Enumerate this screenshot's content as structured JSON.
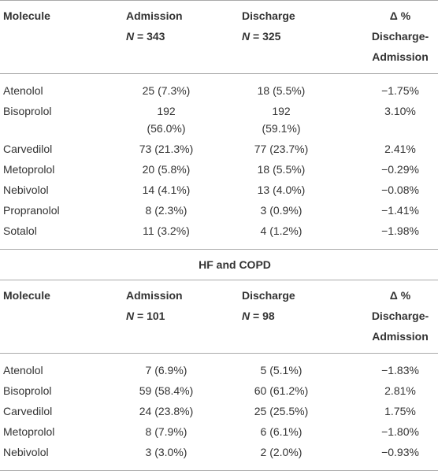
{
  "table1": {
    "header": {
      "molecule": "Molecule",
      "admission": {
        "title": "Admission",
        "n_symbol": "N",
        "n_text": "= 343"
      },
      "discharge": {
        "title": "Discharge",
        "n_symbol": "N",
        "n_text": "= 325"
      },
      "delta": [
        "Δ %",
        "Discharge-",
        "Admission"
      ]
    },
    "rows": [
      [
        "Atenolol",
        "25 (7.3%)",
        "18 (5.5%)",
        "−1.75%"
      ],
      [
        "Bisoprolol",
        [
          "192",
          "(56.0%)"
        ],
        [
          "192",
          "(59.1%)"
        ],
        "3.10%"
      ],
      [
        "Carvedilol",
        "73 (21.3%)",
        "77 (23.7%)",
        "2.41%"
      ],
      [
        "Metoprolol",
        "20 (5.8%)",
        "18 (5.5%)",
        "−0.29%"
      ],
      [
        "Nebivolol",
        "14 (4.1%)",
        "13 (4.0%)",
        "−0.08%"
      ],
      [
        "Propranolol",
        "8 (2.3%)",
        "3 (0.9%)",
        "−1.41%"
      ],
      [
        "Sotalol",
        "11 (3.2%)",
        "4 (1.2%)",
        "−1.98%"
      ]
    ]
  },
  "section_title": "HF and COPD",
  "table2": {
    "header": {
      "molecule": "Molecule",
      "admission": {
        "title": "Admission",
        "n_symbol": "N",
        "n_text": "= 101"
      },
      "discharge": {
        "title": "Discharge",
        "n_symbol": "N",
        "n_text": "= 98"
      },
      "delta": [
        "Δ %",
        "Discharge-",
        "Admission"
      ]
    },
    "rows": [
      [
        "Atenolol",
        "7 (6.9%)",
        "5 (5.1%)",
        "−1.83%"
      ],
      [
        "Bisoprolol",
        "59 (58.4%)",
        "60 (61.2%)",
        "2.81%"
      ],
      [
        "Carvedilol",
        "24 (23.8%)",
        "25 (25.5%)",
        "1.75%"
      ],
      [
        "Metoprolol",
        "8 (7.9%)",
        "6 (6.1%)",
        "−1.80%"
      ],
      [
        "Nebivolol",
        "3 (3.0%)",
        "2 (2.0%)",
        "−0.93%"
      ]
    ]
  }
}
